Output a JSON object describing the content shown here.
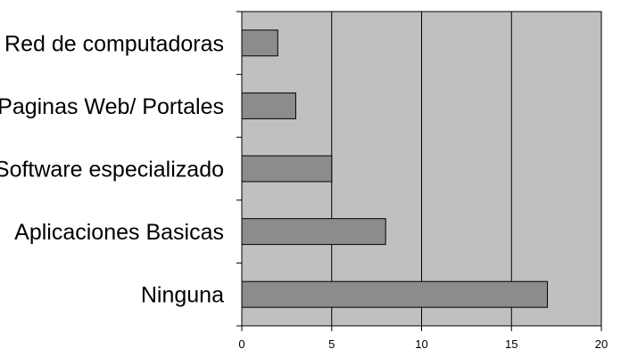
{
  "chart_data": {
    "type": "bar",
    "orientation": "horizontal",
    "categories": [
      "Red de computadoras",
      "Paginas Web/ Portales",
      "Software especializado",
      "Aplicaciones Basicas",
      "Ninguna"
    ],
    "values": [
      2,
      3,
      5,
      8,
      17
    ],
    "xlim": [
      0,
      20
    ],
    "x_ticks": [
      "0",
      "5",
      "10",
      "15",
      "20"
    ],
    "grid": true,
    "legend": "none",
    "colors": {
      "plot_background": "#c0c0c0",
      "bar_fill": "#8c8c8c",
      "bar_stroke": "#000000",
      "gridline": "#000000"
    }
  }
}
